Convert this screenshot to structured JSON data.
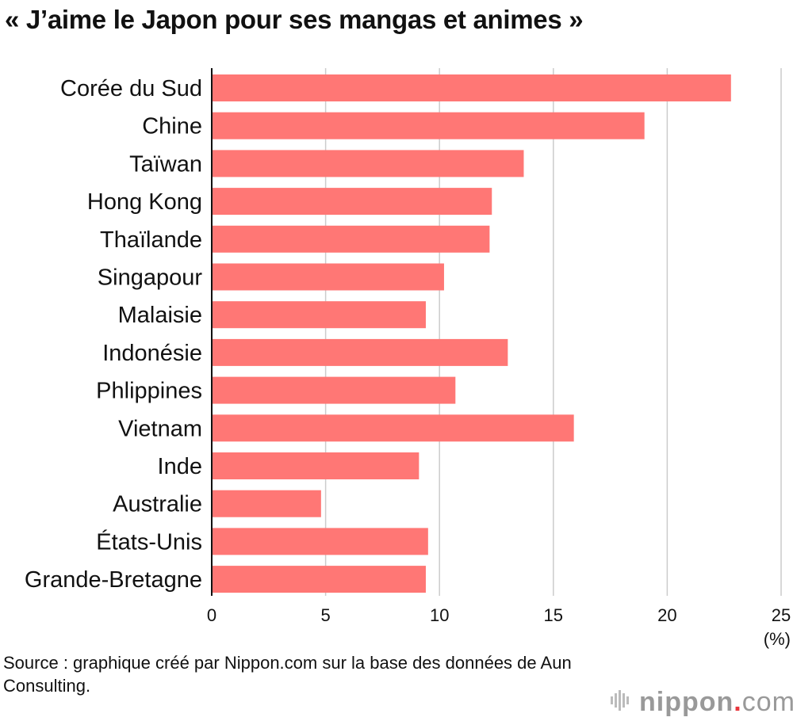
{
  "title": "« J’aime le Japon pour ses mangas et animes »",
  "chart_data": {
    "type": "bar",
    "orientation": "horizontal",
    "categories": [
      "Corée du Sud",
      "Chine",
      "Taïwan",
      "Hong Kong",
      "Thaïlande",
      "Singapour",
      "Malaisie",
      "Indonésie",
      "Phlippines",
      "Vietnam",
      "Inde",
      "Australie",
      "États-Unis",
      "Grande-Bretagne"
    ],
    "values": [
      22.8,
      19.0,
      13.7,
      12.3,
      12.2,
      10.2,
      9.4,
      13.0,
      10.7,
      15.9,
      9.1,
      4.8,
      9.5,
      9.4
    ],
    "xticks": [
      "0",
      "5",
      "10",
      "15",
      "20",
      "25"
    ],
    "xlim": [
      0,
      25
    ],
    "unit": "(%)",
    "grid": true,
    "bar_color": "#ff7775",
    "grid_color": "#cccccc"
  },
  "source": "Source : graphique créé par Nippon.com sur la base des données de Aun Consulting.",
  "logo": {
    "name": "nippon",
    "dot": ".",
    "suffix": "com",
    "icon": "nippon-logo-icon",
    "dot_color": "#e8363d",
    "text_color": "#999999"
  }
}
